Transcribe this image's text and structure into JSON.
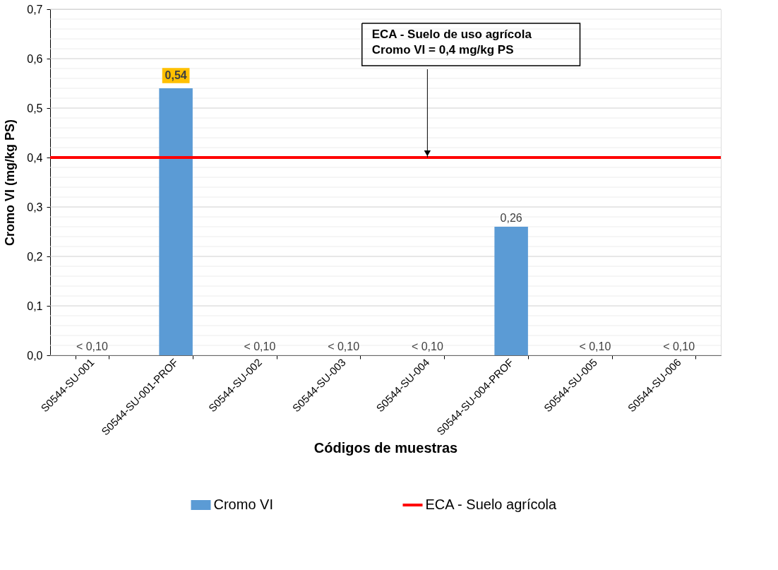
{
  "chart_data": {
    "type": "bar",
    "xlabel": "Códigos de muestras",
    "ylabel": "Cromo VI (mg/kg PS)",
    "categories": [
      "S0544-SU-001",
      "S0544-SU-001-PROF",
      "S0544-SU-002",
      "S0544-SU-003",
      "S0544-SU-004",
      "S0544-SU-004-PROF",
      "S0544-SU-005",
      "S0544-SU-006"
    ],
    "series": [
      {
        "name": "Cromo VI",
        "color": "#5b9bd5",
        "values": [
          null,
          0.54,
          null,
          null,
          null,
          0.26,
          null,
          null
        ],
        "value_labels": [
          "< 0,10",
          "0,54",
          "< 0,10",
          "< 0,10",
          "< 0,10",
          "0,26",
          "< 0,10",
          "< 0,10"
        ]
      }
    ],
    "ylim": [
      0,
      0.7
    ],
    "yticks": [
      {
        "value": 0,
        "label": "0,0"
      },
      {
        "value": 0.02,
        "label": null
      },
      {
        "value": 0.04,
        "label": null
      },
      {
        "value": 0.06,
        "label": null
      },
      {
        "value": 0.08,
        "label": null
      },
      {
        "value": 0.1,
        "label": "0,1"
      },
      {
        "value": 0.12,
        "label": null
      },
      {
        "value": 0.14,
        "label": null
      },
      {
        "value": 0.16,
        "label": null
      },
      {
        "value": 0.18,
        "label": null
      },
      {
        "value": 0.2,
        "label": "0,2"
      },
      {
        "value": 0.22,
        "label": null
      },
      {
        "value": 0.24,
        "label": null
      },
      {
        "value": 0.26,
        "label": null
      },
      {
        "value": 0.28,
        "label": null
      },
      {
        "value": 0.3,
        "label": "0,3"
      },
      {
        "value": 0.32,
        "label": null
      },
      {
        "value": 0.34,
        "label": null
      },
      {
        "value": 0.36,
        "label": null
      },
      {
        "value": 0.38,
        "label": null
      },
      {
        "value": 0.4,
        "label": "0,4"
      },
      {
        "value": 0.42,
        "label": null
      },
      {
        "value": 0.44,
        "label": null
      },
      {
        "value": 0.46,
        "label": null
      },
      {
        "value": 0.48,
        "label": null
      },
      {
        "value": 0.5,
        "label": "0,5"
      },
      {
        "value": 0.52,
        "label": null
      },
      {
        "value": 0.54,
        "label": null
      },
      {
        "value": 0.56,
        "label": null
      },
      {
        "value": 0.58,
        "label": null
      },
      {
        "value": 0.6,
        "label": "0,6"
      },
      {
        "value": 0.62,
        "label": null
      },
      {
        "value": 0.64,
        "label": null
      },
      {
        "value": 0.66,
        "label": null
      },
      {
        "value": 0.68,
        "label": null
      },
      {
        "value": 0.7,
        "label": "0,7"
      }
    ],
    "grid": "y",
    "legend": "bottom",
    "ref_lines": [
      {
        "axis": "y",
        "value": 0.4,
        "label": "ECA - Suelo agrícola",
        "color": "#ff0000"
      }
    ],
    "annotations": [
      {
        "text": "ECA - Suelo de uso agrícola\nCromo VI = 0,4 mg/kg PS",
        "x": "S0544-SU-004",
        "y": 0.4
      }
    ]
  }
}
